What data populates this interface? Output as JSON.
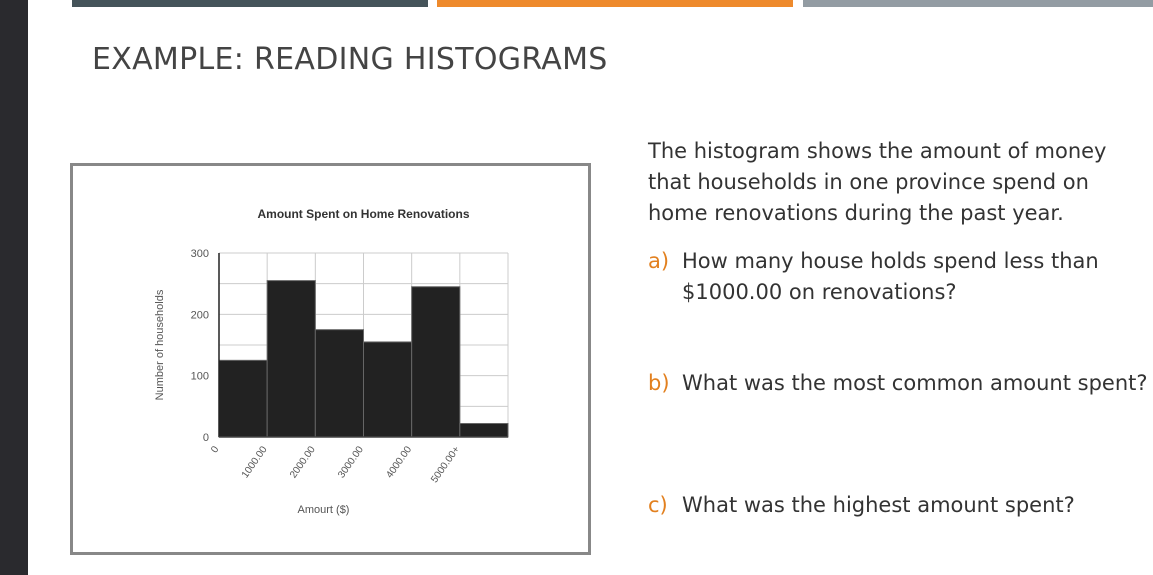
{
  "slide": {
    "title": "EXAMPLE: READING HISTOGRAMS",
    "accent_colors": [
      "#45545a",
      "#ee8a2c",
      "#939ca3"
    ],
    "intro": "The histogram shows the amount of money that households in one province spend on home renovations during the past year.",
    "questions": [
      {
        "letter": "a)",
        "text": "How many house holds spend less than $1000.00 on renovations?"
      },
      {
        "letter": "b)",
        "text": "What was the most common amount spent?"
      },
      {
        "letter": "c)",
        "text": "What was the highest amount spent?"
      }
    ]
  },
  "chart_data": {
    "type": "bar",
    "title": "Amount Spent on Home Renovations",
    "xlabel": "Amourt ($)",
    "ylabel": "Number of households",
    "x_tick_labels": [
      "0",
      "1000.00",
      "2000.00",
      "3000.00",
      "4000.00",
      "5000.00+"
    ],
    "categories": [
      "0-1000",
      "1000-2000",
      "2000-3000",
      "3000-4000",
      "4000-5000",
      "5000+"
    ],
    "values": [
      125,
      255,
      175,
      155,
      245,
      22
    ],
    "ylim": [
      0,
      300
    ],
    "y_ticks": [
      "0",
      "100",
      "200",
      "300"
    ],
    "grid": true,
    "bar_color": "#222222"
  }
}
